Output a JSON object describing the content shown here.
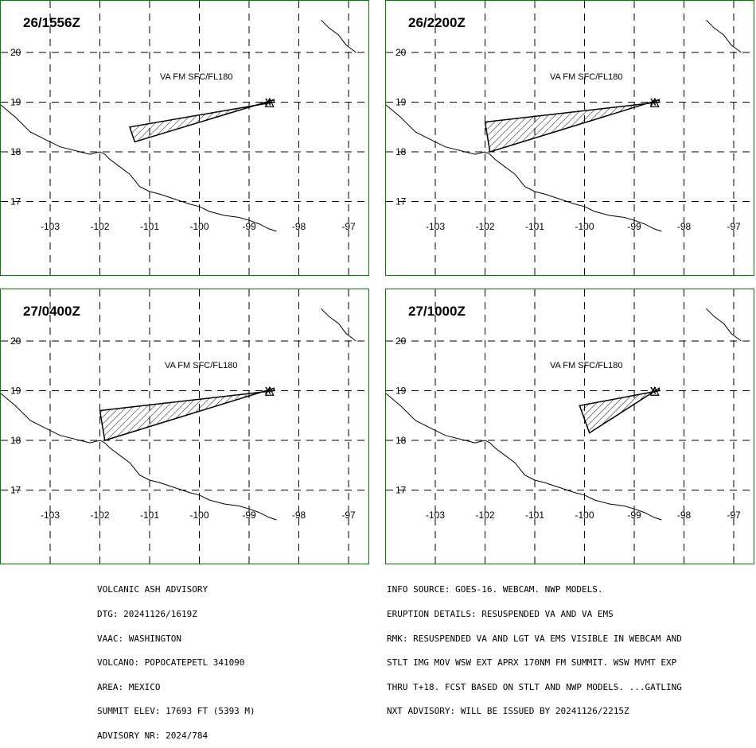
{
  "colors": {
    "frame": "#008000",
    "grid": "#000000",
    "coast": "#000000",
    "ash": "#000000"
  },
  "va_label": "VA FM SFC/FL180",
  "lat_labels": [
    "20",
    "19",
    "18",
    "17"
  ],
  "lon_labels": [
    "-103",
    "-102",
    "-101",
    "-100",
    "-99",
    "-98",
    "-97"
  ],
  "panels": [
    {
      "time": "26/1556Z",
      "polygon": [
        [
          -98.5,
          19.0
        ],
        [
          -101.4,
          18.5
        ],
        [
          -101.3,
          18.2
        ],
        [
          -98.5,
          19.05
        ]
      ]
    },
    {
      "time": "26/2200Z",
      "polygon": [
        [
          -98.5,
          19.0
        ],
        [
          -102.0,
          18.6
        ],
        [
          -101.9,
          18.0
        ],
        [
          -98.5,
          19.05
        ]
      ]
    },
    {
      "time": "27/0400Z",
      "polygon": [
        [
          -98.5,
          19.0
        ],
        [
          -102.0,
          18.6
        ],
        [
          -101.9,
          18.0
        ],
        [
          -98.5,
          19.05
        ]
      ]
    },
    {
      "time": "27/1000Z",
      "polygon": [
        [
          -98.5,
          19.0
        ],
        [
          -100.1,
          18.7
        ],
        [
          -99.9,
          18.15
        ],
        [
          -98.5,
          19.05
        ]
      ]
    }
  ],
  "volcano": {
    "lon": -98.62,
    "lat": 19.02,
    "symbol": "X"
  },
  "advisory_left": [
    "VOLCANIC ASH ADVISORY",
    "DTG: 20241126/1619Z",
    "VAAC: WASHINGTON",
    "VOLCANO: POPOCATEPETL 341090",
    "AREA: MEXICO",
    "SUMMIT ELEV: 17693 FT (5393 M)",
    "ADVISORY NR: 2024/784"
  ],
  "advisory_right": [
    "INFO SOURCE: GOES-16. WEBCAM. NWP MODELS.",
    "ERUPTION DETAILS: RESUSPENDED VA AND VA EMS",
    "RMK: RESUSPENDED VA AND LGT VA EMS VISIBLE IN WEBCAM AND",
    "STLT IMG MOV WSW EXT APRX 170NM FM SUMMIT. WSW MVMT EXP",
    "THRU T+18. FCST BASED ON STLT AND NWP MODELS. ...GATLING",
    "NXT ADVISORY: WILL BE ISSUED BY 20241126/2215Z"
  ]
}
